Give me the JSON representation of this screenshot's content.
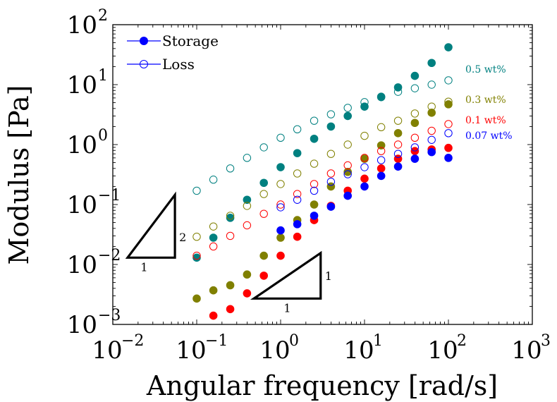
{
  "chart_data": {
    "type": "scatter",
    "xlabel": "Angular frequency [rad/s]",
    "ylabel": "Modulus [Pa]",
    "xscale": "log",
    "yscale": "log",
    "xlim": [
      0.01,
      1000
    ],
    "ylim": [
      0.001,
      100
    ],
    "x_ticks": [
      {
        "base": "10",
        "exp": "−2"
      },
      {
        "base": "10",
        "exp": "−1"
      },
      {
        "base": "10",
        "exp": "0"
      },
      {
        "base": "10",
        "exp": "1"
      },
      {
        "base": "10",
        "exp": "2"
      },
      {
        "base": "10",
        "exp": "3"
      }
    ],
    "y_ticks": [
      {
        "base": "10",
        "exp": "−3"
      },
      {
        "base": "10",
        "exp": "−2"
      },
      {
        "base": "10",
        "exp": "−1"
      },
      {
        "base": "10",
        "exp": "0"
      },
      {
        "base": "10",
        "exp": "1"
      },
      {
        "base": "10",
        "exp": "2"
      }
    ],
    "grid": false,
    "legend": {
      "position": "top-left",
      "entries": [
        {
          "label": "Storage",
          "marker": "filled-circle"
        },
        {
          "label": "Loss",
          "marker": "open-circle"
        }
      ],
      "color": "#0000ff"
    },
    "series": [
      {
        "name": "0.5 wt%",
        "color": "#008080",
        "storage": [
          [
            0.1,
            0.013
          ],
          [
            0.158,
            0.028
          ],
          [
            0.251,
            0.06
          ],
          [
            0.398,
            0.12
          ],
          [
            0.631,
            0.23
          ],
          [
            1,
            0.42
          ],
          [
            1.58,
            0.72
          ],
          [
            2.51,
            1.25
          ],
          [
            3.98,
            2.0
          ],
          [
            6.31,
            3.0
          ],
          [
            10,
            4.3
          ],
          [
            15.8,
            6.2
          ],
          [
            25.1,
            9.0
          ],
          [
            39.8,
            14
          ],
          [
            63.1,
            23
          ],
          [
            100,
            42
          ]
        ],
        "loss": [
          [
            0.1,
            0.17
          ],
          [
            0.158,
            0.26
          ],
          [
            0.251,
            0.4
          ],
          [
            0.398,
            0.6
          ],
          [
            0.631,
            0.9
          ],
          [
            1,
            1.3
          ],
          [
            1.58,
            1.8
          ],
          [
            2.51,
            2.5
          ],
          [
            3.98,
            3.2
          ],
          [
            6.31,
            4.1
          ],
          [
            10,
            5.1
          ],
          [
            15.8,
            6.3
          ],
          [
            25.1,
            7.6
          ],
          [
            39.8,
            8.7
          ],
          [
            63.1,
            10
          ],
          [
            100,
            11.8
          ]
        ]
      },
      {
        "name": "0.3 wt%",
        "color": "#808000",
        "storage": [
          [
            0.1,
            0.0027
          ],
          [
            0.158,
            0.0037
          ],
          [
            0.251,
            0.0045
          ],
          [
            0.398,
            0.0068
          ],
          [
            0.631,
            0.014
          ],
          [
            1,
            0.028
          ],
          [
            1.58,
            0.055
          ],
          [
            2.51,
            0.1
          ],
          [
            3.98,
            0.2
          ],
          [
            6.31,
            0.35
          ],
          [
            10,
            0.58
          ],
          [
            15.8,
            0.97
          ],
          [
            25.1,
            1.55
          ],
          [
            39.8,
            2.3
          ],
          [
            63.1,
            3.4
          ],
          [
            100,
            4.7
          ]
        ],
        "loss": [
          [
            0.1,
            0.029
          ],
          [
            0.158,
            0.043
          ],
          [
            0.251,
            0.065
          ],
          [
            0.398,
            0.095
          ],
          [
            0.631,
            0.15
          ],
          [
            1,
            0.22
          ],
          [
            1.58,
            0.33
          ],
          [
            2.51,
            0.48
          ],
          [
            3.98,
            0.7
          ],
          [
            6.31,
            1.0
          ],
          [
            10,
            1.4
          ],
          [
            15.8,
            1.95
          ],
          [
            25.1,
            2.5
          ],
          [
            39.8,
            3.3
          ],
          [
            63.1,
            4.3
          ],
          [
            100,
            5.2
          ]
        ]
      },
      {
        "name": "0.1 wt%",
        "color": "#ff0000",
        "storage": [
          [
            0.158,
            0.0014
          ],
          [
            0.251,
            0.0018
          ],
          [
            0.398,
            0.0033
          ],
          [
            0.631,
            0.0065
          ],
          [
            1,
            0.014
          ],
          [
            1.58,
            0.029
          ],
          [
            2.51,
            0.055
          ],
          [
            3.98,
            0.095
          ],
          [
            6.31,
            0.17
          ],
          [
            10,
            0.27
          ],
          [
            15.8,
            0.4
          ],
          [
            25.1,
            0.58
          ],
          [
            39.8,
            0.78
          ],
          [
            63.1,
            0.83
          ],
          [
            100,
            0.88
          ]
        ],
        "loss": [
          [
            0.1,
            0.014
          ],
          [
            0.158,
            0.02
          ],
          [
            0.251,
            0.03
          ],
          [
            0.398,
            0.045
          ],
          [
            0.631,
            0.07
          ],
          [
            1,
            0.1
          ],
          [
            1.58,
            0.15
          ],
          [
            2.51,
            0.22
          ],
          [
            3.98,
            0.33
          ],
          [
            6.31,
            0.45
          ],
          [
            10,
            0.6
          ],
          [
            15.8,
            0.78
          ],
          [
            25.1,
            1.0
          ],
          [
            39.8,
            1.3
          ],
          [
            63.1,
            1.7
          ],
          [
            100,
            2.2
          ]
        ]
      },
      {
        "name": "0.07 wt%",
        "color": "#0000ff",
        "storage": [
          [
            1,
            0.037
          ],
          [
            1.58,
            0.047
          ],
          [
            2.51,
            0.065
          ],
          [
            3.98,
            0.092
          ],
          [
            6.31,
            0.14
          ],
          [
            10,
            0.2
          ],
          [
            15.8,
            0.3
          ],
          [
            25.1,
            0.43
          ],
          [
            39.8,
            0.58
          ],
          [
            63.1,
            0.75
          ],
          [
            100,
            0.6
          ]
        ],
        "loss": [
          [
            1,
            0.09
          ],
          [
            1.58,
            0.12
          ],
          [
            2.51,
            0.17
          ],
          [
            3.98,
            0.24
          ],
          [
            6.31,
            0.32
          ],
          [
            10,
            0.42
          ],
          [
            15.8,
            0.55
          ],
          [
            25.1,
            0.7
          ],
          [
            39.8,
            0.9
          ],
          [
            63.1,
            1.2
          ],
          [
            100,
            1.55
          ]
        ]
      }
    ],
    "annotations": {
      "slope_triangles": [
        {
          "label_horizontal": "1",
          "label_vertical": "2",
          "x": [
            0.015,
            0.055
          ],
          "y": [
            0.013,
            0.145
          ]
        },
        {
          "label_horizontal": "1",
          "label_vertical": "1",
          "x": [
            0.48,
            3.0
          ],
          "y": [
            0.0027,
            0.0155
          ]
        }
      ]
    }
  }
}
